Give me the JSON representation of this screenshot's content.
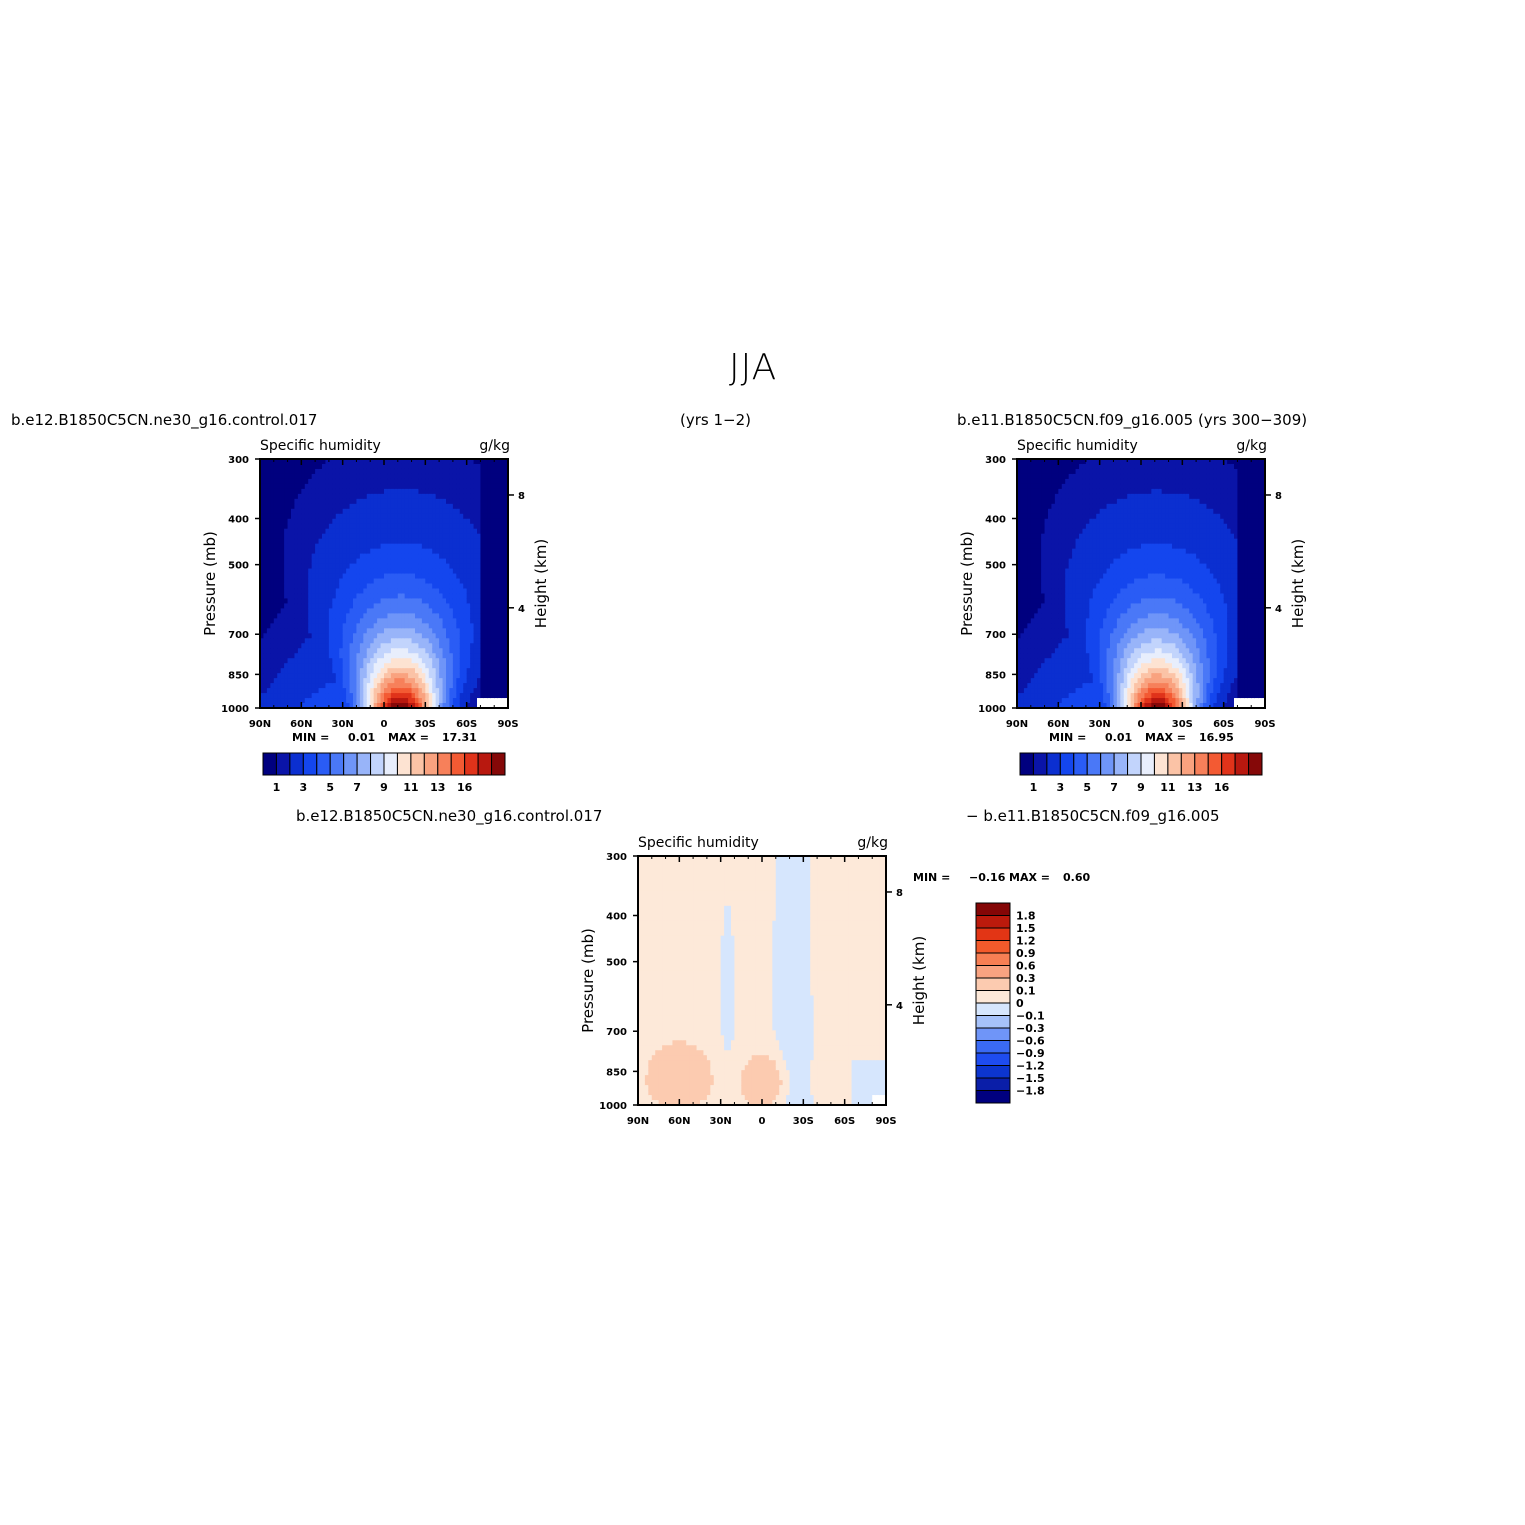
{
  "figure": {
    "season": "JJA",
    "left_case": "b.e12.B1850C5CN.ne30_g16.control.017",
    "center_years": "(yrs 1−2)",
    "right_case": "b.e11.B1850C5CN.f09_g16.005 (yrs 300−309)",
    "diff_left": "b.e12.B1850C5CN.ne30_g16.control.017",
    "diff_right": "− b.e11.B1850C5CN.f09_g16.005"
  },
  "chart_data": [
    {
      "type": "heatmap",
      "panel": "case1",
      "variable": "Specific humidity",
      "units": "g/kg",
      "ylabel": "Pressure (mb)",
      "ylabel_right": "Height (km)",
      "x_ticks": [
        "90N",
        "60N",
        "30N",
        "0",
        "30S",
        "60S",
        "90S"
      ],
      "y_ticks": [
        "300",
        "400",
        "500",
        "700",
        "850",
        "1000"
      ],
      "height_ticks": [
        "8",
        "4"
      ],
      "min_label": "MIN =",
      "min_value": "0.01",
      "max_label": "MAX =",
      "max_value": "17.31",
      "peak_lat": -12,
      "peak_value": 17.31,
      "colorbar_levels": [
        0.5,
        1,
        2,
        3,
        4,
        5,
        6,
        7,
        8,
        9,
        10,
        11,
        12,
        13,
        14,
        15,
        16
      ],
      "colorbar_labels": [
        "1",
        "3",
        "5",
        "7",
        "9",
        "11",
        "13",
        "16"
      ]
    },
    {
      "type": "heatmap",
      "panel": "case2",
      "variable": "Specific humidity",
      "units": "g/kg",
      "ylabel": "Pressure (mb)",
      "ylabel_right": "Height (km)",
      "x_ticks": [
        "90N",
        "60N",
        "30N",
        "0",
        "30S",
        "60S",
        "90S"
      ],
      "y_ticks": [
        "300",
        "400",
        "500",
        "700",
        "850",
        "1000"
      ],
      "height_ticks": [
        "8",
        "4"
      ],
      "min_label": "MIN =",
      "min_value": "0.01",
      "max_label": "MAX =",
      "max_value": "16.95",
      "peak_lat": -12,
      "peak_value": 16.95,
      "colorbar_levels": [
        0.5,
        1,
        2,
        3,
        4,
        5,
        6,
        7,
        8,
        9,
        10,
        11,
        12,
        13,
        14,
        15,
        16
      ],
      "colorbar_labels": [
        "1",
        "3",
        "5",
        "7",
        "9",
        "11",
        "13",
        "16"
      ]
    },
    {
      "type": "heatmap",
      "panel": "difference",
      "variable": "Specific humidity",
      "units": "g/kg",
      "ylabel": "Pressure (mb)",
      "ylabel_right": "Height (km)",
      "x_ticks": [
        "90N",
        "60N",
        "30N",
        "0",
        "30S",
        "60S",
        "90S"
      ],
      "y_ticks": [
        "300",
        "400",
        "500",
        "700",
        "850",
        "1000"
      ],
      "height_ticks": [
        "8",
        "4"
      ],
      "min_label": "MIN =",
      "min_value": "−0.16",
      "max_label": "MAX =",
      "max_value": "0.60",
      "colorbar_levels": [
        -1.8,
        -1.5,
        -1.2,
        -0.9,
        -0.6,
        -0.3,
        -0.1,
        0,
        0.1,
        0.3,
        0.6,
        0.9,
        1.2,
        1.5,
        1.8
      ],
      "colorbar_labels": [
        "1.8",
        "1.5",
        "1.2",
        "0.9",
        "0.6",
        "0.3",
        "0.1",
        "0",
        "−0.1",
        "−0.3",
        "−0.6",
        "−0.9",
        "−1.2",
        "−1.5",
        "−1.8"
      ]
    }
  ],
  "colors": {
    "seq17": [
      "#00007f",
      "#0a14a8",
      "#0b2fd0",
      "#1446ee",
      "#2a5cf5",
      "#4a78f7",
      "#6f95f8",
      "#98b4f9",
      "#c2d4fc",
      "#e8eefc",
      "#fde3d2",
      "#fbc3a6",
      "#f9a27f",
      "#f7805a",
      "#f35a33",
      "#e0331a",
      "#b8180f",
      "#850808"
    ],
    "div16": [
      "#00007f",
      "#0a1ea8",
      "#0c35cf",
      "#1e4cf0",
      "#3a6af4",
      "#6f95f8",
      "#a6c2fa",
      "#d6e6fd",
      "#fde9d9",
      "#fccbb0",
      "#f9a381",
      "#f77f54",
      "#f35a2b",
      "#e23515",
      "#bb1a0c",
      "#840606"
    ]
  }
}
